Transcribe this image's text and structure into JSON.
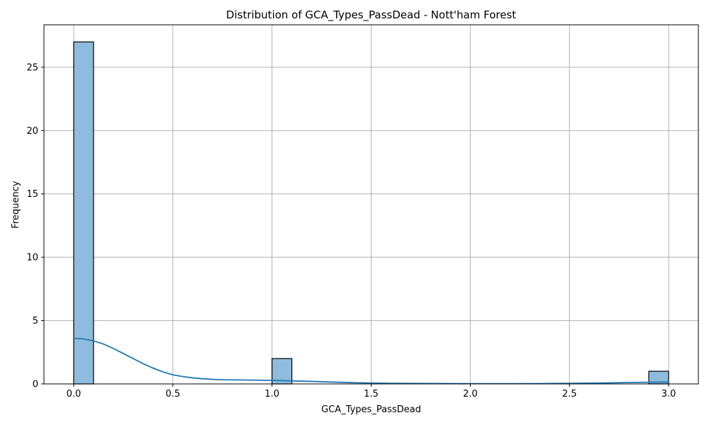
{
  "chart_data": {
    "type": "bar",
    "title": "Distribution of GCA_Types_PassDead - Nott'ham Forest",
    "xlabel": "GCA_Types_PassDead",
    "ylabel": "Frequency",
    "xlim": [
      -0.15,
      3.15
    ],
    "ylim": [
      0,
      28.35
    ],
    "xticks": [
      0.0,
      0.5,
      1.0,
      1.5,
      2.0,
      2.5,
      3.0
    ],
    "xtick_labels": [
      "0.0",
      "0.5",
      "1.0",
      "1.5",
      "2.0",
      "2.5",
      "3.0"
    ],
    "yticks": [
      0,
      5,
      10,
      15,
      20,
      25
    ],
    "ytick_labels": [
      "0",
      "5",
      "10",
      "15",
      "20",
      "25"
    ],
    "grid": true,
    "bar_color": "#8fbbdc",
    "bar_edge_color": "#000000",
    "kde_color": "#1f77b4",
    "bins": [
      {
        "x0": 0.0,
        "x1": 0.1,
        "count": 27
      },
      {
        "x0": 1.0,
        "x1": 1.1,
        "count": 2
      },
      {
        "x0": 2.9,
        "x1": 3.0,
        "count": 1
      }
    ],
    "kde": {
      "x": [
        0.0,
        0.05,
        0.1,
        0.15,
        0.2,
        0.25,
        0.3,
        0.35,
        0.4,
        0.45,
        0.5,
        0.55,
        0.6,
        0.65,
        0.7,
        0.75,
        0.8,
        0.9,
        1.0,
        1.1,
        1.2,
        1.3,
        1.4,
        1.5,
        1.6,
        1.8,
        2.0,
        2.2,
        2.4,
        2.6,
        2.7,
        2.8,
        2.9,
        3.0
      ],
      "y": [
        3.6,
        3.55,
        3.4,
        3.15,
        2.8,
        2.4,
        2.0,
        1.6,
        1.25,
        0.95,
        0.72,
        0.58,
        0.48,
        0.41,
        0.36,
        0.33,
        0.32,
        0.3,
        0.28,
        0.24,
        0.2,
        0.15,
        0.1,
        0.07,
        0.05,
        0.03,
        0.02,
        0.02,
        0.03,
        0.06,
        0.08,
        0.11,
        0.13,
        0.15
      ]
    }
  }
}
